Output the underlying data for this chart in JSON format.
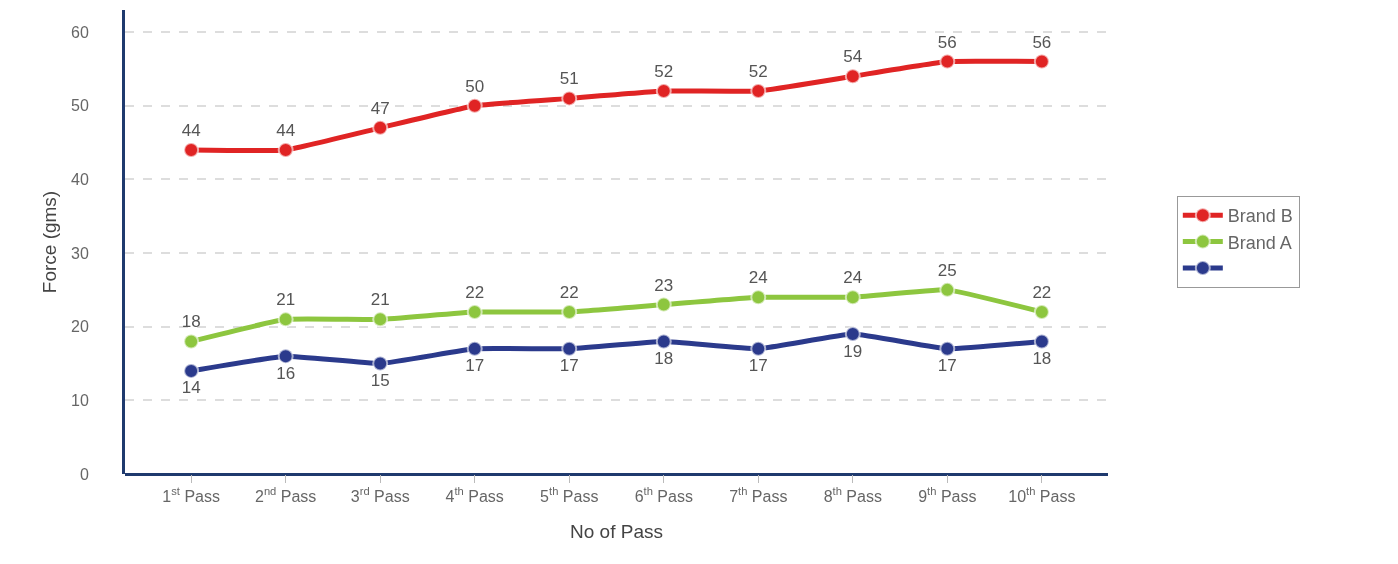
{
  "chart_data": {
    "type": "line",
    "xlabel": "No of Pass",
    "ylabel": "Force (gms)",
    "categories": [
      "1$^{st}$ Pass",
      "2$^{nd}$ Pass",
      "3$^{rd}$ Pass",
      "4$^{th}$ Pass",
      "5$^{th}$ Pass",
      "6$^{th}$ Pass",
      "7$^{th}$ Pass",
      "8$^{th}$ Pass",
      "9$^{th}$ Pass",
      "10$^{th}$ Pass"
    ],
    "series": [
      {
        "name": "Brand B",
        "color": "#e02424",
        "values": [
          44,
          44,
          47,
          50,
          51,
          52,
          52,
          54,
          56,
          56
        ]
      },
      {
        "name": "Brand A",
        "color": "#8dc63f",
        "values": [
          18,
          21,
          21,
          22,
          22,
          23,
          24,
          24,
          25,
          22
        ]
      },
      {
        "color": "#2b3a8c",
        "values": [
          14,
          16,
          15,
          17,
          17,
          18,
          17,
          19,
          17,
          18
        ]
      }
    ],
    "ylim": [
      0,
      63
    ],
    "yticks": [
      0,
      10,
      20,
      30,
      40,
      50,
      60
    ],
    "grid": "y",
    "legend": "right",
    "marker": "circle",
    "line_style": "solid",
    "data_labels": true
  }
}
